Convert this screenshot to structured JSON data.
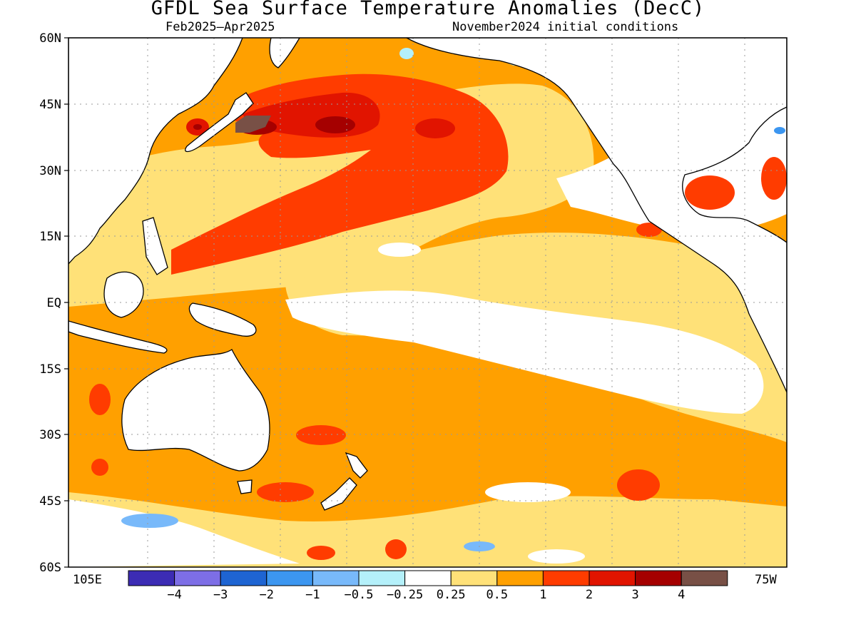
{
  "title": "GFDL Sea Surface Temperature Anomalies (DecC)",
  "subtitle_left": "Feb2025–Apr2025",
  "subtitle_right": "November2024 initial conditions",
  "lat_labels": [
    "60N",
    "45N",
    "30N",
    "15N",
    "EQ",
    "15S",
    "30S",
    "45S",
    "60S"
  ],
  "lon_label_left": "105E",
  "lon_label_right": "75W",
  "colorbar": {
    "labels": [
      "−4",
      "−3",
      "−2",
      "−1",
      "−0.5",
      "−0.25",
      "0.25",
      "0.5",
      "1",
      "2",
      "3",
      "4"
    ],
    "colors": [
      "#3c2cb4",
      "#7d6ee6",
      "#1e64d2",
      "#3c96f0",
      "#78b9fa",
      "#b4f0fa",
      "#ffffff",
      "#ffe178",
      "#ffa000",
      "#ff3c00",
      "#e11400",
      "#a50000",
      "#785046"
    ]
  }
}
